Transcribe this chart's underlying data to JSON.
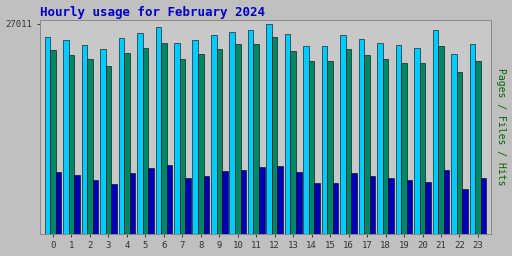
{
  "title": "Hourly usage for February 2024",
  "title_color": "#0000cc",
  "title_fontsize": 9,
  "ylabel_right": "Pages / Files / Hits",
  "ylabel_right_color": "#006600",
  "ylabel_right_fontsize": 7,
  "background_color": "#c0c0c0",
  "plot_bg_color": "#c8c8c8",
  "ytick_label": "27011",
  "ytick_color": "#333333",
  "hours": [
    0,
    1,
    2,
    3,
    4,
    5,
    6,
    7,
    8,
    9,
    10,
    11,
    12,
    13,
    14,
    15,
    16,
    17,
    18,
    19,
    20,
    21,
    22,
    23
  ],
  "hits": [
    25800,
    25400,
    24700,
    24200,
    25600,
    26300,
    27011,
    25000,
    25300,
    26000,
    26400,
    26700,
    27500,
    26100,
    24500,
    24500,
    26000,
    25500,
    25000,
    24700,
    24300,
    26600,
    23500,
    24800
  ],
  "files": [
    24000,
    23400,
    22900,
    22000,
    23700,
    24300,
    25000,
    22800,
    23500,
    24200,
    24800,
    24800,
    25800,
    23900,
    22600,
    22600,
    24200,
    23400,
    22900,
    22300,
    22300,
    24500,
    21200,
    22600
  ],
  "pages": [
    8100,
    7700,
    7100,
    6500,
    8000,
    8600,
    9000,
    7300,
    7600,
    8200,
    8400,
    8700,
    8900,
    8100,
    6700,
    6700,
    7900,
    7600,
    7300,
    7000,
    6800,
    8400,
    5900,
    7300
  ],
  "color_hits": "#00ccff",
  "color_files": "#008866",
  "color_pages": "#0000bb",
  "bar_width": 0.3,
  "ymax": 28000,
  "border_color": "#000000",
  "xlabel_color": "#333333"
}
